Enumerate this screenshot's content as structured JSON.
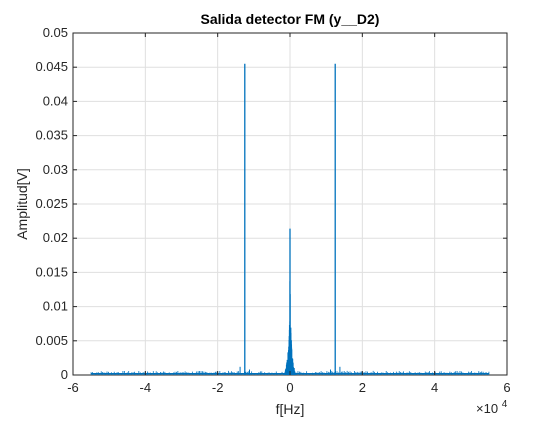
{
  "chart_data": {
    "type": "line",
    "title": "Salida detector FM (y__D2)",
    "xlabel": "f[Hz]",
    "ylabel": "Amplitud[V]",
    "x_exponent_label": "×10",
    "x_exponent_power": "4",
    "xlim": [
      -60000,
      60000
    ],
    "ylim": [
      0,
      0.05
    ],
    "xticks": [
      -60000,
      -40000,
      -20000,
      0,
      20000,
      40000,
      60000
    ],
    "xtick_labels": [
      "-6",
      "-4",
      "-2",
      "0",
      "2",
      "4",
      "6"
    ],
    "yticks": [
      0,
      0.005,
      0.01,
      0.015,
      0.02,
      0.025,
      0.03,
      0.035,
      0.04,
      0.045,
      0.05
    ],
    "ytick_labels": [
      "0",
      "0.005",
      "0.01",
      "0.015",
      "0.02",
      "0.025",
      "0.03",
      "0.035",
      "0.04",
      "0.045",
      "0.05"
    ],
    "grid": true,
    "x_data_range": [
      -55000,
      55000
    ],
    "series": [
      {
        "color": "#0072BD",
        "peaks": [
          {
            "x": -12500,
            "y": 0.0455
          },
          {
            "x": 12500,
            "y": 0.0455
          },
          {
            "x": 0,
            "y": 0.0214
          }
        ],
        "central_spread": {
          "x_min": -1500,
          "x_max": 1500,
          "envelope": [
            {
              "x": -1500,
              "y": 0.0002
            },
            {
              "x": -1000,
              "y": 0.0015
            },
            {
              "x": -600,
              "y": 0.003
            },
            {
              "x": -300,
              "y": 0.006
            },
            {
              "x": -100,
              "y": 0.0095
            },
            {
              "x": 0,
              "y": 0.0214
            },
            {
              "x": 100,
              "y": 0.0095
            },
            {
              "x": 300,
              "y": 0.006
            },
            {
              "x": 600,
              "y": 0.003
            },
            {
              "x": 1000,
              "y": 0.0015
            },
            {
              "x": 1500,
              "y": 0.0002
            }
          ]
        },
        "minor_spikes": [
          {
            "x": -40000,
            "y": 0.0005
          },
          {
            "x": 40000,
            "y": 0.0005
          },
          {
            "x": -13800,
            "y": 0.0012
          },
          {
            "x": 13800,
            "y": 0.0012
          },
          {
            "x": -11200,
            "y": 0.0008
          },
          {
            "x": 11200,
            "y": 0.0008
          },
          {
            "x": -25000,
            "y": 0.0003
          },
          {
            "x": 25000,
            "y": 0.0003
          }
        ],
        "noise_floor": 0.0002
      }
    ]
  }
}
